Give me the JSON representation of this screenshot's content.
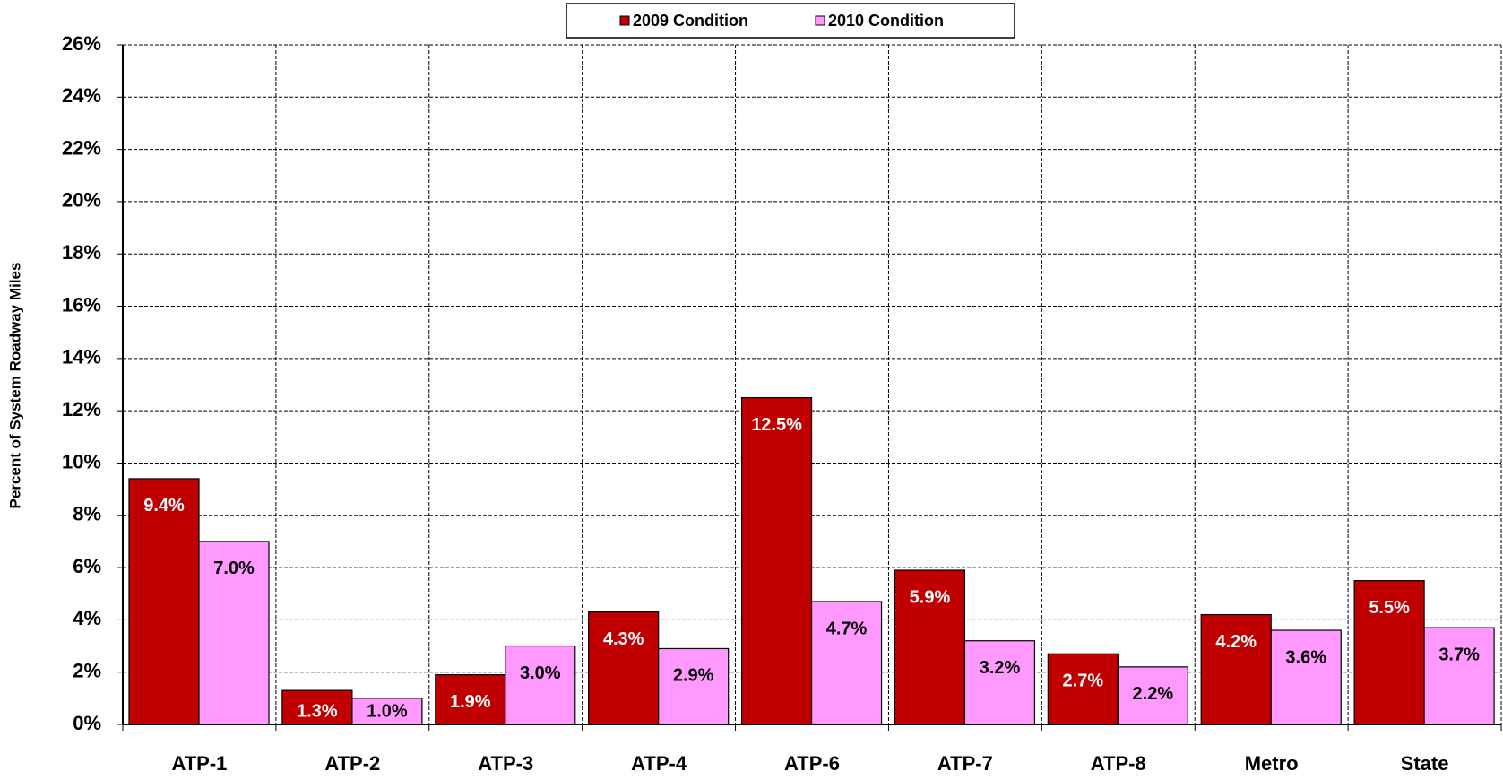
{
  "chart_data": {
    "type": "bar",
    "y_label": "Percent of System Roadway Miles",
    "categories": [
      "ATP-1",
      "ATP-2",
      "ATP-3",
      "ATP-4",
      "ATP-6",
      "ATP-7",
      "ATP-8",
      "Metro",
      "State"
    ],
    "series": [
      {
        "name": "2009 Condition",
        "color": "#c00000",
        "values": [
          9.4,
          1.3,
          1.9,
          4.3,
          12.5,
          5.9,
          2.7,
          4.2,
          5.5
        ],
        "value_labels": [
          "9.4%",
          "1.3%",
          "1.9%",
          "4.3%",
          "12.5%",
          "5.9%",
          "2.7%",
          "4.2%",
          "5.5%"
        ]
      },
      {
        "name": "2010 Condition",
        "color": "#ff99ff",
        "values": [
          7.0,
          1.0,
          3.0,
          2.9,
          4.7,
          3.2,
          2.2,
          3.6,
          3.7
        ],
        "value_labels": [
          "7.0%",
          "1.0%",
          "3.0%",
          "2.9%",
          "4.7%",
          "3.2%",
          "2.2%",
          "3.6%",
          "3.7%"
        ]
      }
    ],
    "ylim": [
      0,
      26
    ],
    "yticks": [
      {
        "value": 0,
        "label": "0%"
      },
      {
        "value": 2,
        "label": "2%"
      },
      {
        "value": 4,
        "label": "4%"
      },
      {
        "value": 6,
        "label": "6%"
      },
      {
        "value": 8,
        "label": "8%"
      },
      {
        "value": 10,
        "label": "10%"
      },
      {
        "value": 12,
        "label": "12%"
      },
      {
        "value": 14,
        "label": "14%"
      },
      {
        "value": 16,
        "label": "16%"
      },
      {
        "value": 18,
        "label": "18%"
      },
      {
        "value": 20,
        "label": "20%"
      },
      {
        "value": 22,
        "label": "22%"
      },
      {
        "value": 24,
        "label": "24%"
      },
      {
        "value": 26,
        "label": "26%"
      }
    ],
    "grid": true,
    "legend": "top"
  }
}
